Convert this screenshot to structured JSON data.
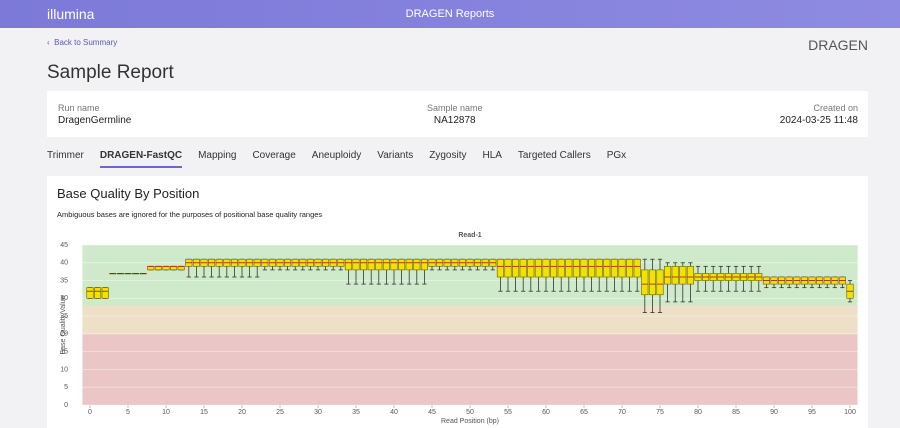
{
  "header": {
    "brand": "illumina",
    "app_title": "DRAGEN Reports"
  },
  "back_link": "Back to Summary",
  "logo": "DRAGEN",
  "page_title": "Sample Report",
  "info": [
    {
      "label": "Run name",
      "value": "DragenGermline"
    },
    {
      "label": "Sample name",
      "value": "NA12878"
    },
    {
      "label": "Created on",
      "value": "2024-03-25 11:48"
    }
  ],
  "tabs": [
    "Trimmer",
    "DRAGEN-FastQC",
    "Mapping",
    "Coverage",
    "Aneuploidy",
    "Variants",
    "Zygosity",
    "HLA",
    "Targeted Callers",
    "PGx"
  ],
  "active_tab": 1,
  "section": {
    "title": "Base Quality By Position",
    "note": "Ambiguous bases are ignored for the purposes of positional base quality ranges"
  },
  "chart_data": {
    "type": "box",
    "title": "Read-1",
    "x_label": "Read Position (bp)",
    "y_label": "Base Quality Value",
    "x": [
      0,
      1,
      2,
      3,
      4,
      5,
      6,
      7,
      8,
      9,
      10,
      11,
      12,
      13,
      14,
      15,
      16,
      17,
      18,
      19,
      20,
      21,
      22,
      23,
      24,
      25,
      26,
      27,
      28,
      29,
      30,
      31,
      32,
      33,
      34,
      35,
      36,
      37,
      38,
      39,
      40,
      41,
      42,
      43,
      44,
      45,
      46,
      47,
      48,
      49,
      50,
      51,
      52,
      53,
      54,
      55,
      56,
      57,
      58,
      59,
      60,
      61,
      62,
      63,
      64,
      65,
      66,
      67,
      68,
      69,
      70,
      71,
      72,
      73,
      74,
      75,
      76,
      77,
      78,
      79,
      80,
      81,
      82,
      83,
      84,
      85,
      86,
      87,
      88,
      89,
      90,
      91,
      92,
      93,
      94,
      95,
      96,
      97,
      98,
      99,
      100
    ],
    "low": [
      30,
      30,
      30,
      37,
      37,
      37,
      37,
      37,
      38,
      38,
      38,
      38,
      38,
      36,
      36,
      36,
      36,
      36,
      36,
      36,
      36,
      36,
      36,
      38,
      38,
      38,
      38,
      38,
      38,
      38,
      38,
      38,
      38,
      38,
      34,
      34,
      34,
      34,
      34,
      34,
      34,
      34,
      34,
      34,
      34,
      38,
      38,
      38,
      38,
      38,
      38,
      38,
      38,
      38,
      32,
      32,
      32,
      32,
      32,
      32,
      32,
      32,
      32,
      32,
      32,
      32,
      32,
      32,
      32,
      32,
      32,
      32,
      32,
      26,
      26,
      26,
      29,
      29,
      29,
      29,
      32,
      32,
      32,
      32,
      32,
      32,
      32,
      32,
      32,
      33,
      33,
      33,
      33,
      33,
      33,
      33,
      33,
      33,
      33,
      33,
      29
    ],
    "q1": [
      30,
      30,
      30,
      37,
      37,
      37,
      37,
      37,
      38,
      38,
      38,
      38,
      38,
      39,
      39,
      39,
      39,
      39,
      39,
      39,
      39,
      39,
      39,
      39,
      39,
      39,
      39,
      39,
      39,
      39,
      39,
      39,
      39,
      39,
      38,
      38,
      38,
      38,
      38,
      38,
      38,
      38,
      38,
      38,
      38,
      39,
      39,
      39,
      39,
      39,
      39,
      39,
      39,
      39,
      36,
      36,
      36,
      36,
      36,
      36,
      36,
      36,
      36,
      36,
      36,
      36,
      36,
      36,
      36,
      36,
      36,
      36,
      36,
      31,
      31,
      31,
      34,
      34,
      34,
      34,
      35,
      35,
      35,
      35,
      35,
      35,
      35,
      35,
      35,
      34,
      34,
      34,
      34,
      34,
      34,
      34,
      34,
      34,
      34,
      34,
      30
    ],
    "median": [
      32,
      32,
      32,
      37,
      37,
      37,
      37,
      37,
      39,
      39,
      39,
      39,
      39,
      40,
      40,
      40,
      40,
      40,
      40,
      40,
      40,
      40,
      40,
      40,
      40,
      40,
      40,
      40,
      40,
      40,
      40,
      40,
      40,
      40,
      40,
      40,
      40,
      40,
      40,
      40,
      40,
      40,
      40,
      40,
      40,
      40,
      40,
      40,
      40,
      40,
      40,
      40,
      40,
      40,
      39,
      39,
      39,
      39,
      39,
      39,
      39,
      39,
      39,
      39,
      39,
      39,
      39,
      39,
      39,
      39,
      39,
      39,
      39,
      34,
      34,
      34,
      36,
      36,
      36,
      36,
      36,
      36,
      36,
      36,
      36,
      36,
      36,
      36,
      36,
      35,
      35,
      35,
      35,
      35,
      35,
      35,
      35,
      35,
      35,
      35,
      32
    ],
    "q3": [
      33,
      33,
      33,
      37,
      37,
      37,
      37,
      37,
      39,
      39,
      39,
      39,
      39,
      41,
      41,
      41,
      41,
      41,
      41,
      41,
      41,
      41,
      41,
      41,
      41,
      41,
      41,
      41,
      41,
      41,
      41,
      41,
      41,
      41,
      41,
      41,
      41,
      41,
      41,
      41,
      41,
      41,
      41,
      41,
      41,
      41,
      41,
      41,
      41,
      41,
      41,
      41,
      41,
      41,
      41,
      41,
      41,
      41,
      41,
      41,
      41,
      41,
      41,
      41,
      41,
      41,
      41,
      41,
      41,
      41,
      41,
      41,
      41,
      38,
      38,
      38,
      39,
      39,
      39,
      39,
      37,
      37,
      37,
      37,
      37,
      37,
      37,
      37,
      37,
      36,
      36,
      36,
      36,
      36,
      36,
      36,
      36,
      36,
      36,
      36,
      34
    ],
    "high": [
      33,
      33,
      33,
      37,
      37,
      37,
      37,
      37,
      39,
      39,
      39,
      39,
      39,
      41,
      41,
      41,
      41,
      41,
      41,
      41,
      41,
      41,
      41,
      41,
      41,
      41,
      41,
      41,
      41,
      41,
      41,
      41,
      41,
      41,
      41,
      41,
      41,
      41,
      41,
      41,
      41,
      41,
      41,
      41,
      41,
      41,
      41,
      41,
      41,
      41,
      41,
      41,
      41,
      41,
      41,
      41,
      41,
      41,
      41,
      41,
      41,
      41,
      41,
      41,
      41,
      41,
      41,
      41,
      41,
      41,
      41,
      41,
      41,
      41,
      41,
      41,
      40,
      40,
      40,
      40,
      39,
      39,
      39,
      39,
      39,
      39,
      39,
      39,
      39,
      36,
      36,
      36,
      36,
      36,
      36,
      36,
      36,
      36,
      36,
      36,
      35
    ],
    "color": "#f3e200",
    "bands": [
      {
        "from": 0,
        "to": 20,
        "color": "#ebc6c6"
      },
      {
        "from": 20,
        "to": 28,
        "color": "#ede0c6"
      },
      {
        "from": 28,
        "to": 45,
        "color": "#cfeacb"
      }
    ],
    "xlim": [
      -1,
      101
    ],
    "ylim": [
      0,
      45
    ],
    "xticks": [
      0,
      5,
      10,
      15,
      20,
      25,
      30,
      35,
      40,
      45,
      50,
      55,
      60,
      65,
      70,
      75,
      80,
      85,
      90,
      95,
      100
    ],
    "yticks": [
      0,
      5,
      10,
      15,
      20,
      25,
      30,
      35,
      40,
      45
    ],
    "grid": true
  }
}
